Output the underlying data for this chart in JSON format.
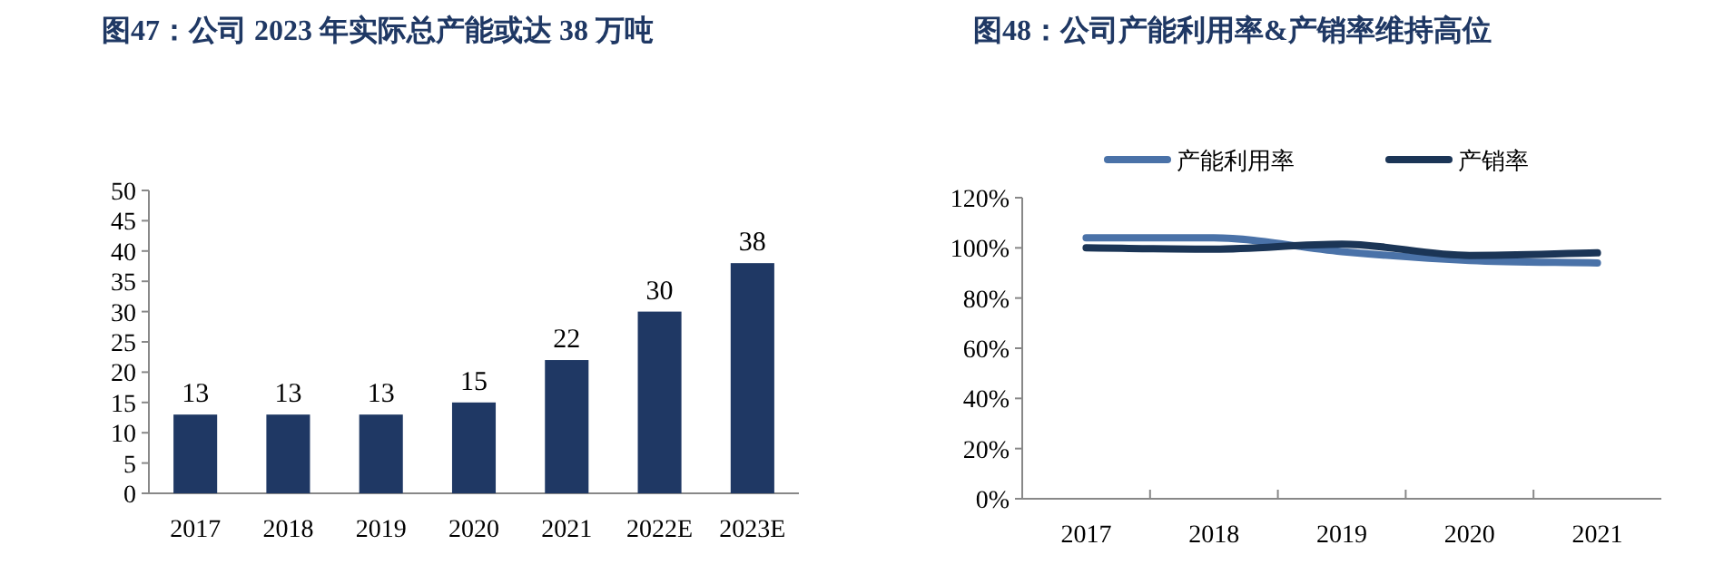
{
  "chart_data": [
    {
      "type": "bar",
      "title": "图47：公司 2023 年实际总产能或达 38 万吨",
      "categories": [
        "2017",
        "2018",
        "2019",
        "2020",
        "2021",
        "2022E",
        "2023E"
      ],
      "values": [
        13,
        13,
        13,
        15,
        22,
        30,
        38
      ],
      "color": "#1f3864",
      "data_labels": true,
      "ylim": [
        0,
        50
      ],
      "yticks": [
        0,
        5,
        10,
        15,
        20,
        25,
        30,
        35,
        40,
        45,
        50
      ],
      "grid": false
    },
    {
      "type": "line",
      "title": "图48：公司产能利用率&产销率维持高位",
      "categories": [
        "2017",
        "2018",
        "2019",
        "2020",
        "2021"
      ],
      "series": [
        {
          "name": "产能利用率",
          "color": "#4a72a8",
          "values": [
            104,
            104,
            98.5,
            95,
            94
          ]
        },
        {
          "name": "产销率",
          "color": "#1b3556",
          "values": [
            100,
            99.5,
            101.5,
            97,
            98
          ]
        }
      ],
      "ylim": [
        0,
        120
      ],
      "yticks": [
        {
          "value": 0,
          "label": "0%"
        },
        {
          "value": 20,
          "label": "20%"
        },
        {
          "value": 40,
          "label": "40%"
        },
        {
          "value": 60,
          "label": "60%"
        },
        {
          "value": 80,
          "label": "80%"
        },
        {
          "value": 100,
          "label": "100%"
        },
        {
          "value": 120,
          "label": "120%"
        }
      ],
      "grid": false,
      "legend": "top",
      "marker": "none",
      "line_style": "solid"
    }
  ]
}
